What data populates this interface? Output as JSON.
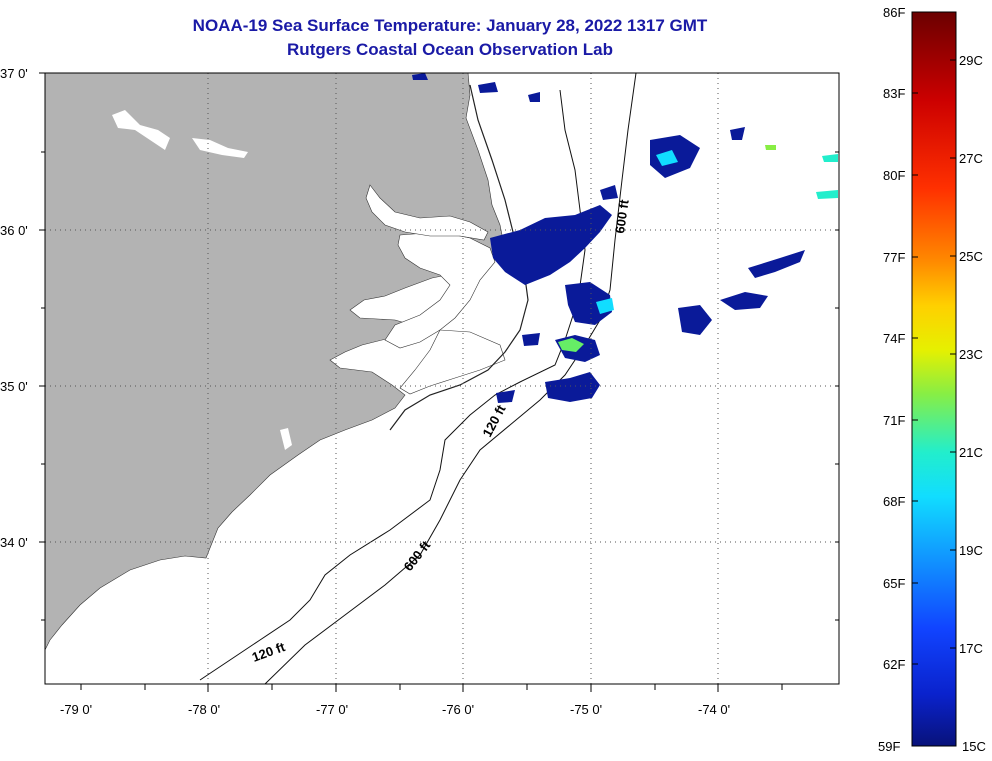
{
  "title": {
    "line1": "NOAA-19 Sea Surface Temperature:  January 28, 2022 1317 GMT",
    "line2": "Rutgers Coastal Ocean Observation Lab"
  },
  "map": {
    "lon_range": [
      -79.3,
      -73.0
    ],
    "lat_range": [
      33.1,
      37.0
    ],
    "lon_labels": [
      "-79 0'",
      "-78 0'",
      "-77 0'",
      "-76 0'",
      "-75 0'",
      "-74 0'"
    ],
    "lat_labels": [
      "37 0'",
      "36 0'",
      "35 0'",
      "34 0'"
    ],
    "land_color": "#b3b3b3",
    "water_color": "#ffffff",
    "contours": [
      {
        "label": "120 ft"
      },
      {
        "label": "600 ft"
      },
      {
        "label": "120 ft"
      },
      {
        "label": "600 ft"
      }
    ]
  },
  "colorbar": {
    "fahrenheit_labels": [
      "86F",
      "83F",
      "80F",
      "77F",
      "74F",
      "71F",
      "68F",
      "65F",
      "62F",
      "59F"
    ],
    "celsius_labels": [
      "29C",
      "27C",
      "25C",
      "23C",
      "21C",
      "19C",
      "17C",
      "15C"
    ],
    "colors": [
      "#7a0000",
      "#cc0000",
      "#ff3300",
      "#ff8800",
      "#ffcc00",
      "#ccee22",
      "#66ee66",
      "#11eedd",
      "#11bbff",
      "#1166ff",
      "#1133ee",
      "#0a1a99"
    ]
  }
}
